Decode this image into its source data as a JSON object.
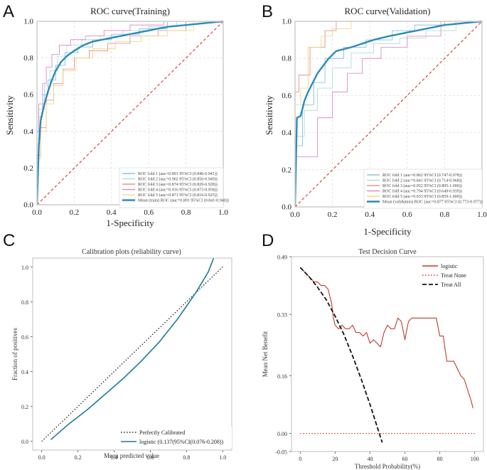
{
  "chart_data": [
    {
      "panel": "A",
      "type": "line",
      "title": "ROC curve(Training)",
      "xlabel": "1-Specificity",
      "ylabel": "Sensitivity",
      "xlim": [
        0,
        1
      ],
      "ylim": [
        0,
        1
      ],
      "xticks": [
        "0.0",
        "0.2",
        "0.4",
        "0.6",
        "0.8",
        "1.0"
      ],
      "yticks": [
        "0.0",
        "0.2",
        "0.4",
        "0.6",
        "0.8",
        "1.0"
      ],
      "grid": true,
      "legend": "bottom-right",
      "series": [
        {
          "name": "ROC fold   1 (auc=0.891 95%CI (0.840-0.941))",
          "color": "#7db5d8",
          "width": 0.8,
          "x": [
            0,
            0,
            0.01,
            0.01,
            0.03,
            0.03,
            0.06,
            0.06,
            0.1,
            0.1,
            0.15,
            0.15,
            0.22,
            0.22,
            0.3,
            0.3,
            0.4,
            0.4,
            0.55,
            0.55,
            0.7,
            0.7,
            1.0
          ],
          "y": [
            0,
            0.3,
            0.3,
            0.48,
            0.48,
            0.6,
            0.6,
            0.68,
            0.68,
            0.76,
            0.76,
            0.83,
            0.83,
            0.86,
            0.86,
            0.9,
            0.9,
            0.93,
            0.93,
            0.96,
            0.96,
            1.0,
            1.0
          ]
        },
        {
          "name": "ROC fold   2 (auc=0.902 95%CI (0.856-0.949))",
          "color": "#a9d8d0",
          "width": 0.8,
          "x": [
            0,
            0,
            0.01,
            0.01,
            0.04,
            0.04,
            0.07,
            0.07,
            0.11,
            0.11,
            0.16,
            0.16,
            0.24,
            0.24,
            0.34,
            0.34,
            0.46,
            0.46,
            0.6,
            0.6,
            0.75,
            0.75,
            1.0
          ],
          "y": [
            0,
            0.36,
            0.36,
            0.52,
            0.52,
            0.65,
            0.65,
            0.73,
            0.73,
            0.81,
            0.81,
            0.87,
            0.87,
            0.9,
            0.9,
            0.92,
            0.92,
            0.95,
            0.95,
            0.97,
            0.97,
            1.0,
            1.0
          ]
        },
        {
          "name": "ROC fold   3 (auc=0.874 95%CI (0.820-0.928))",
          "color": "#e38282",
          "width": 0.8,
          "x": [
            0,
            0,
            0.02,
            0.02,
            0.05,
            0.05,
            0.09,
            0.09,
            0.14,
            0.14,
            0.2,
            0.2,
            0.28,
            0.28,
            0.38,
            0.38,
            0.5,
            0.5,
            0.65,
            0.65,
            0.8,
            0.8,
            1.0
          ],
          "y": [
            0,
            0.27,
            0.27,
            0.42,
            0.42,
            0.57,
            0.57,
            0.66,
            0.66,
            0.74,
            0.74,
            0.8,
            0.8,
            0.84,
            0.84,
            0.88,
            0.88,
            0.92,
            0.92,
            0.95,
            0.95,
            1.0,
            1.0
          ]
        },
        {
          "name": "ROC fold   4 (auc=0.916 95%CI (0.873-0.958))",
          "color": "#d87cc0",
          "width": 0.8,
          "x": [
            0,
            0,
            0.01,
            0.01,
            0.03,
            0.03,
            0.05,
            0.05,
            0.08,
            0.08,
            0.12,
            0.12,
            0.18,
            0.18,
            0.26,
            0.26,
            0.36,
            0.36,
            0.5,
            0.5,
            0.68,
            0.68,
            1.0
          ],
          "y": [
            0,
            0.4,
            0.4,
            0.55,
            0.55,
            0.66,
            0.66,
            0.75,
            0.75,
            0.82,
            0.82,
            0.87,
            0.87,
            0.9,
            0.9,
            0.92,
            0.92,
            0.95,
            0.95,
            0.98,
            0.98,
            1.0,
            1.0
          ]
        },
        {
          "name": "ROC fold   5 (auc=0.871 95%CI (0.816-0.925))",
          "color": "#f0d27a",
          "width": 0.8,
          "x": [
            0,
            0,
            0.02,
            0.02,
            0.05,
            0.05,
            0.09,
            0.09,
            0.14,
            0.14,
            0.21,
            0.21,
            0.3,
            0.3,
            0.42,
            0.42,
            0.56,
            0.56,
            0.7,
            0.7,
            0.84,
            0.84,
            1.0
          ],
          "y": [
            0,
            0.25,
            0.25,
            0.4,
            0.4,
            0.55,
            0.55,
            0.65,
            0.65,
            0.73,
            0.73,
            0.8,
            0.8,
            0.85,
            0.85,
            0.89,
            0.89,
            0.92,
            0.92,
            0.95,
            0.95,
            1.0,
            1.0
          ]
        },
        {
          "name": "Mean (train) ROC (auc=0.891 95%CI (0.841-0.940))",
          "color": "#2b8cb8",
          "width": 2.4,
          "x": [
            0,
            0.01,
            0.02,
            0.04,
            0.06,
            0.08,
            0.1,
            0.13,
            0.16,
            0.2,
            0.25,
            0.3,
            0.35,
            0.4,
            0.5,
            0.6,
            0.7,
            0.8,
            0.9,
            1.0
          ],
          "y": [
            0,
            0.32,
            0.46,
            0.55,
            0.62,
            0.68,
            0.73,
            0.78,
            0.81,
            0.84,
            0.87,
            0.89,
            0.9,
            0.91,
            0.93,
            0.95,
            0.97,
            0.98,
            0.99,
            1.0
          ]
        },
        {
          "name": "chance",
          "color": "#d9342b",
          "width": 1.1,
          "dash": "4,3",
          "x": [
            0,
            1
          ],
          "y": [
            0,
            1
          ]
        }
      ]
    },
    {
      "panel": "B",
      "type": "line",
      "title": "ROC curve(Validation)",
      "xlabel": "1-Specificity",
      "ylabel": "Sensitivity",
      "xlim": [
        0,
        1
      ],
      "ylim": [
        0,
        1
      ],
      "xticks": [
        "0.0",
        "0.2",
        "0.4",
        "0.6",
        "0.8",
        "1.0"
      ],
      "yticks": [
        "0.0",
        "0.2",
        "0.4",
        "0.6",
        "0.8",
        "1.0"
      ],
      "grid": true,
      "legend": "bottom-right",
      "series": [
        {
          "name": "ROC fold   1 (auc=0.862 95%CI (0.747-0.978))",
          "color": "#7db5d8",
          "width": 0.8,
          "x": [
            0,
            0,
            0.04,
            0.04,
            0.1,
            0.1,
            0.16,
            0.16,
            0.26,
            0.26,
            0.38,
            0.38,
            0.52,
            0.52,
            0.64,
            0.64,
            0.8,
            0.8,
            1.0
          ],
          "y": [
            0,
            0.33,
            0.33,
            0.55,
            0.55,
            0.67,
            0.67,
            0.8,
            0.8,
            0.86,
            0.86,
            0.9,
            0.9,
            0.95,
            0.95,
            0.98,
            0.98,
            1.0,
            1.0
          ]
        },
        {
          "name": "ROC fold   2 (auc=0.841 95%CI (0.714-0.968))",
          "color": "#a9d8d0",
          "width": 0.8,
          "x": [
            0,
            0,
            0.05,
            0.05,
            0.12,
            0.12,
            0.2,
            0.2,
            0.3,
            0.3,
            0.42,
            0.42,
            0.56,
            0.56,
            0.7,
            0.7,
            0.86,
            0.86,
            1.0
          ],
          "y": [
            0,
            0.38,
            0.38,
            0.52,
            0.52,
            0.64,
            0.64,
            0.75,
            0.75,
            0.83,
            0.83,
            0.88,
            0.88,
            0.91,
            0.91,
            0.95,
            0.95,
            1.0,
            1.0
          ]
        },
        {
          "name": "ROC fold   3 (auc=0.952 95%CI (0.895-1.000))",
          "color": "#e38282",
          "width": 0.8,
          "x": [
            0,
            0,
            0.02,
            0.02,
            0.08,
            0.08,
            0.16,
            0.16,
            0.22,
            0.22,
            0.45,
            0.45,
            1.0
          ],
          "y": [
            0,
            0.62,
            0.62,
            0.71,
            0.71,
            0.86,
            0.86,
            0.95,
            0.95,
            1.0,
            1.0,
            1.0,
            1.0
          ]
        },
        {
          "name": "ROC fold   4 (auc=0.794 95%CI (0.649-0.939))",
          "color": "#d87cc0",
          "width": 0.8,
          "x": [
            0,
            0,
            0.02,
            0.02,
            0.12,
            0.12,
            0.2,
            0.2,
            0.28,
            0.28,
            0.36,
            0.36,
            0.46,
            0.46,
            0.6,
            0.6,
            0.78,
            0.78,
            1.0
          ],
          "y": [
            0,
            0.27,
            0.27,
            0.27,
            0.27,
            0.48,
            0.48,
            0.62,
            0.62,
            0.72,
            0.72,
            0.8,
            0.8,
            0.86,
            0.86,
            0.92,
            0.92,
            1.0,
            1.0
          ]
        },
        {
          "name": "ROC fold   5 (auc=0.933 95%CI (0.859-1.000))",
          "color": "#f0d27a",
          "width": 0.8,
          "x": [
            0,
            0,
            0.03,
            0.03,
            0.07,
            0.07,
            0.14,
            0.14,
            0.2,
            0.2,
            0.3,
            0.3,
            0.44,
            0.44,
            1.0
          ],
          "y": [
            0,
            0.55,
            0.55,
            0.64,
            0.64,
            0.86,
            0.86,
            0.92,
            0.92,
            0.96,
            0.96,
            1.0,
            1.0,
            1.0,
            1.0
          ]
        },
        {
          "name": "Mean (validation) ROC (auc=0.877 95%CI (0.773-0.977))",
          "color": "#2b8cb8",
          "width": 2.4,
          "x": [
            0,
            0.01,
            0.03,
            0.05,
            0.07,
            0.09,
            0.12,
            0.15,
            0.18,
            0.22,
            0.26,
            0.3,
            0.36,
            0.42,
            0.5,
            0.6,
            0.7,
            0.8,
            0.9,
            1.0
          ],
          "y": [
            0,
            0.48,
            0.49,
            0.57,
            0.62,
            0.66,
            0.72,
            0.76,
            0.8,
            0.84,
            0.85,
            0.86,
            0.88,
            0.9,
            0.92,
            0.94,
            0.96,
            0.98,
            0.99,
            1.0
          ]
        },
        {
          "name": "chance",
          "color": "#d9342b",
          "width": 1.1,
          "dash": "4,3",
          "x": [
            0,
            1
          ],
          "y": [
            0,
            1
          ]
        }
      ]
    },
    {
      "panel": "C",
      "type": "line",
      "title": "Calibration plots  (reliability curve)",
      "xlabel": "Mean predicted value",
      "ylabel": "Fraction of positives",
      "xlim": [
        -0.05,
        1.05
      ],
      "ylim": [
        -0.05,
        1.05
      ],
      "xticks": [
        "0.0",
        "0.2",
        "0.4",
        "0.6",
        "0.8",
        "1.0"
      ],
      "yticks": [
        "0.0",
        "0.2",
        "0.4",
        "0.6",
        "0.8",
        "1.0"
      ],
      "grid": false,
      "legend": "bottom-right",
      "series": [
        {
          "name": "Perfectly Calibrated",
          "color": "#222222",
          "width": 1.3,
          "dash": "1.5,2.5",
          "x": [
            0,
            1
          ],
          "y": [
            0,
            1
          ]
        },
        {
          "name": "logistic (0.137(95%CI(0.076-0.208))",
          "color": "#1f78a0",
          "width": 1.6,
          "x": [
            0.05,
            0.15,
            0.25,
            0.35,
            0.45,
            0.55,
            0.65,
            0.75,
            0.85,
            0.92,
            0.95
          ],
          "y": [
            0.01,
            0.1,
            0.18,
            0.27,
            0.36,
            0.46,
            0.57,
            0.7,
            0.85,
            0.97,
            1.05
          ]
        }
      ]
    },
    {
      "panel": "D",
      "type": "line",
      "title": "Test Decision Curve",
      "xlabel": "Threshold Probability(%)",
      "ylabel": "Mean Net Benefit",
      "xlim": [
        -5,
        105
      ],
      "ylim": [
        -0.05,
        0.49
      ],
      "xticks": [
        "0",
        "20",
        "40",
        "60",
        "80",
        "100"
      ],
      "yticks": [
        "-0.05",
        "0.00",
        "0.16",
        "0.33",
        "0.49"
      ],
      "grid": false,
      "legend": "top-right",
      "series": [
        {
          "name": "logistic",
          "color": "#c0392b",
          "width": 1.1,
          "x": [
            0,
            2,
            4,
            6,
            8,
            10,
            12,
            14,
            16,
            18,
            19,
            20,
            22,
            24,
            26,
            28,
            30,
            32,
            34,
            36,
            38,
            40,
            42,
            44,
            46,
            48,
            50,
            52,
            54,
            56,
            58,
            60,
            62,
            64,
            66,
            68,
            70,
            72,
            74,
            76,
            78,
            80,
            82,
            84,
            86,
            88,
            90,
            92,
            94,
            96,
            98,
            99
          ],
          "y": [
            0.46,
            0.45,
            0.44,
            0.43,
            0.42,
            0.42,
            0.41,
            0.41,
            0.4,
            0.36,
            0.32,
            0.3,
            0.29,
            0.3,
            0.29,
            0.29,
            0.3,
            0.28,
            0.28,
            0.27,
            0.28,
            0.25,
            0.26,
            0.25,
            0.24,
            0.28,
            0.3,
            0.29,
            0.29,
            0.32,
            0.31,
            0.26,
            0.31,
            0.32,
            0.32,
            0.32,
            0.32,
            0.32,
            0.32,
            0.32,
            0.32,
            0.27,
            0.27,
            0.2,
            0.2,
            0.2,
            0.18,
            0.16,
            0.15,
            0.12,
            0.09,
            0.07
          ]
        },
        {
          "name": "Treat None",
          "color": "#d9342b",
          "width": 1.2,
          "dash": "1.5,2.5",
          "x": [
            0,
            100
          ],
          "y": [
            0,
            0
          ]
        },
        {
          "name": "Treat All",
          "color": "#111111",
          "width": 1.8,
          "dash": "6,3",
          "x": [
            0,
            5,
            10,
            15,
            20,
            25,
            30,
            35,
            40,
            44,
            47
          ],
          "y": [
            0.46,
            0.435,
            0.405,
            0.37,
            0.325,
            0.275,
            0.215,
            0.15,
            0.08,
            0.02,
            -0.025
          ]
        }
      ]
    }
  ],
  "panel_labels": [
    "A",
    "B",
    "C",
    "D"
  ]
}
